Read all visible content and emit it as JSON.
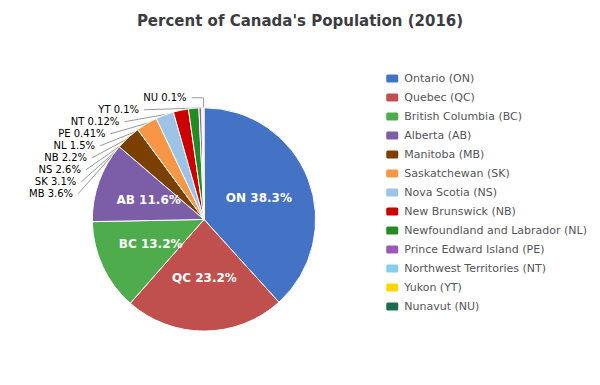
{
  "chart_data": {
    "type": "pie",
    "title": "Percent of Canada's Population (2016)",
    "categories": [
      "Ontario (ON)",
      "Quebec (QC)",
      "British Columbia (BC)",
      "Alberta (AB)",
      "Manitoba (MB)",
      "Saskatchewan (SK)",
      "Nova Scotia (NS)",
      "New Brunswick (NB)",
      "Newfoundland and Labrador (NL)",
      "Prince Edward Island (PE)",
      "Northwest Territories (NT)",
      "Yukon (YT)",
      "Nunavut (NU)"
    ],
    "values": [
      38.3,
      23.2,
      13.2,
      11.6,
      3.6,
      3.1,
      2.6,
      2.19,
      1.5,
      0.41,
      0.12,
      0.1,
      0.1
    ],
    "value_labels": [
      "ON 38.3%",
      "QC 23.2%",
      "BC 13.2%",
      "AB 11.6%",
      "MB 3.6%",
      "SK 3.1%",
      "NS 2.6%",
      "NB 2.2%",
      "NL 1.5%",
      "PE 0.41%",
      "NT 0.12%",
      "YT 0.1%",
      "NU 0.1%"
    ],
    "colors": [
      "#4472C4",
      "#C0504D",
      "#4EAC4D",
      "#7B5EA7",
      "#7B3F00",
      "#F79646",
      "#9DC3E6",
      "#CC0000",
      "#228B22",
      "#9B59B6",
      "#87CEEB",
      "#FFD700",
      "#1F6B4E"
    ],
    "legend": "right",
    "data_labels": true
  }
}
